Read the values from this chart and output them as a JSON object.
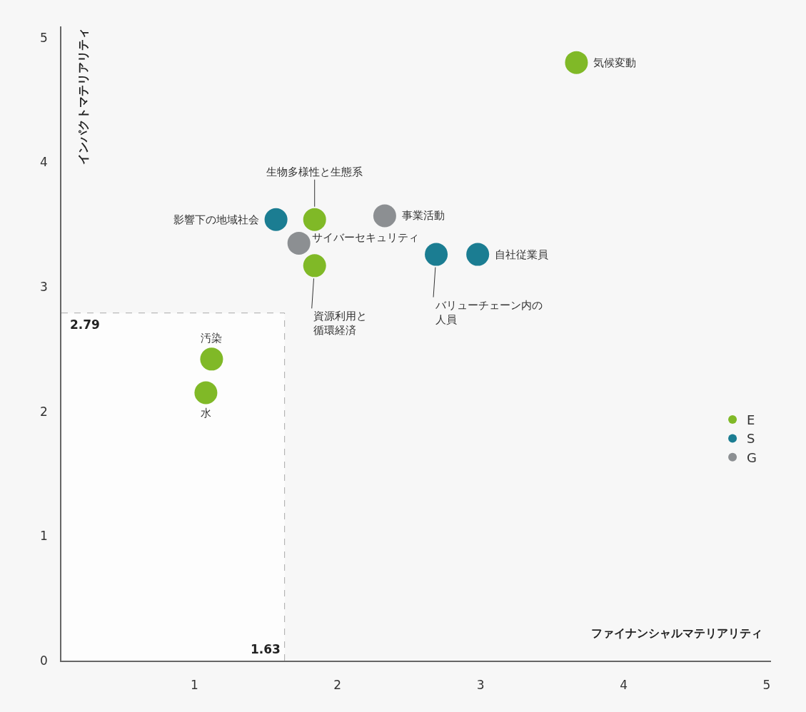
{
  "chart_data": {
    "type": "scatter",
    "xlabel": "ファイナンシャルマテリアリティ",
    "ylabel": "インパクトマテリアリティ",
    "xlim": [
      0.07,
      5.03
    ],
    "xticks": [
      1,
      2,
      3,
      4,
      5
    ],
    "ylim": [
      0,
      5.09
    ],
    "yticks": [
      0,
      1,
      2,
      3,
      4,
      5
    ],
    "grid": false,
    "legend": "right",
    "marker": "circle",
    "series": [
      {
        "name": "E",
        "color": "#80b927",
        "x": [
          3.67,
          1.84,
          1.84,
          1.12,
          1.08
        ],
        "values": [
          4.8,
          3.54,
          3.17,
          2.42,
          2.15
        ]
      },
      {
        "name": "S",
        "color": "#1b7d92",
        "x": [
          1.57,
          2.69,
          2.98
        ],
        "values": [
          3.54,
          3.26,
          3.26
        ]
      },
      {
        "name": "G",
        "color": "#8c8f92",
        "x": [
          2.33,
          1.73
        ],
        "values": [
          3.57,
          3.35
        ]
      }
    ],
    "ref_lines": [
      {
        "axis": "y",
        "value": 2.79,
        "label": "2.79",
        "color": "#aaaaaa",
        "line_style": "dashed"
      },
      {
        "axis": "x",
        "value": 1.63,
        "label": "1.63",
        "color": "#aaaaaa",
        "line_style": "dashed"
      }
    ],
    "annotations": [
      {
        "text": "気候変動",
        "x": 3.67,
        "y": 4.8
      },
      {
        "text": "生物多様性と生態系",
        "x": 1.84,
        "y": 3.54
      },
      {
        "text": "影響下の地域社会",
        "x": 1.57,
        "y": 3.54
      },
      {
        "text": "事業活動",
        "x": 2.33,
        "y": 3.57
      },
      {
        "text": "サイバーセキュリティ",
        "x": 1.73,
        "y": 3.35
      },
      {
        "text": "資源利用と循環経済",
        "x": 1.84,
        "y": 3.17
      },
      {
        "text": "バリューチェーン内の人員",
        "x": 2.69,
        "y": 3.26
      },
      {
        "text": "自社従業員",
        "x": 2.98,
        "y": 3.26
      },
      {
        "text": "汚染",
        "x": 1.12,
        "y": 2.42
      },
      {
        "text": "水",
        "x": 1.08,
        "y": 2.15
      }
    ]
  }
}
